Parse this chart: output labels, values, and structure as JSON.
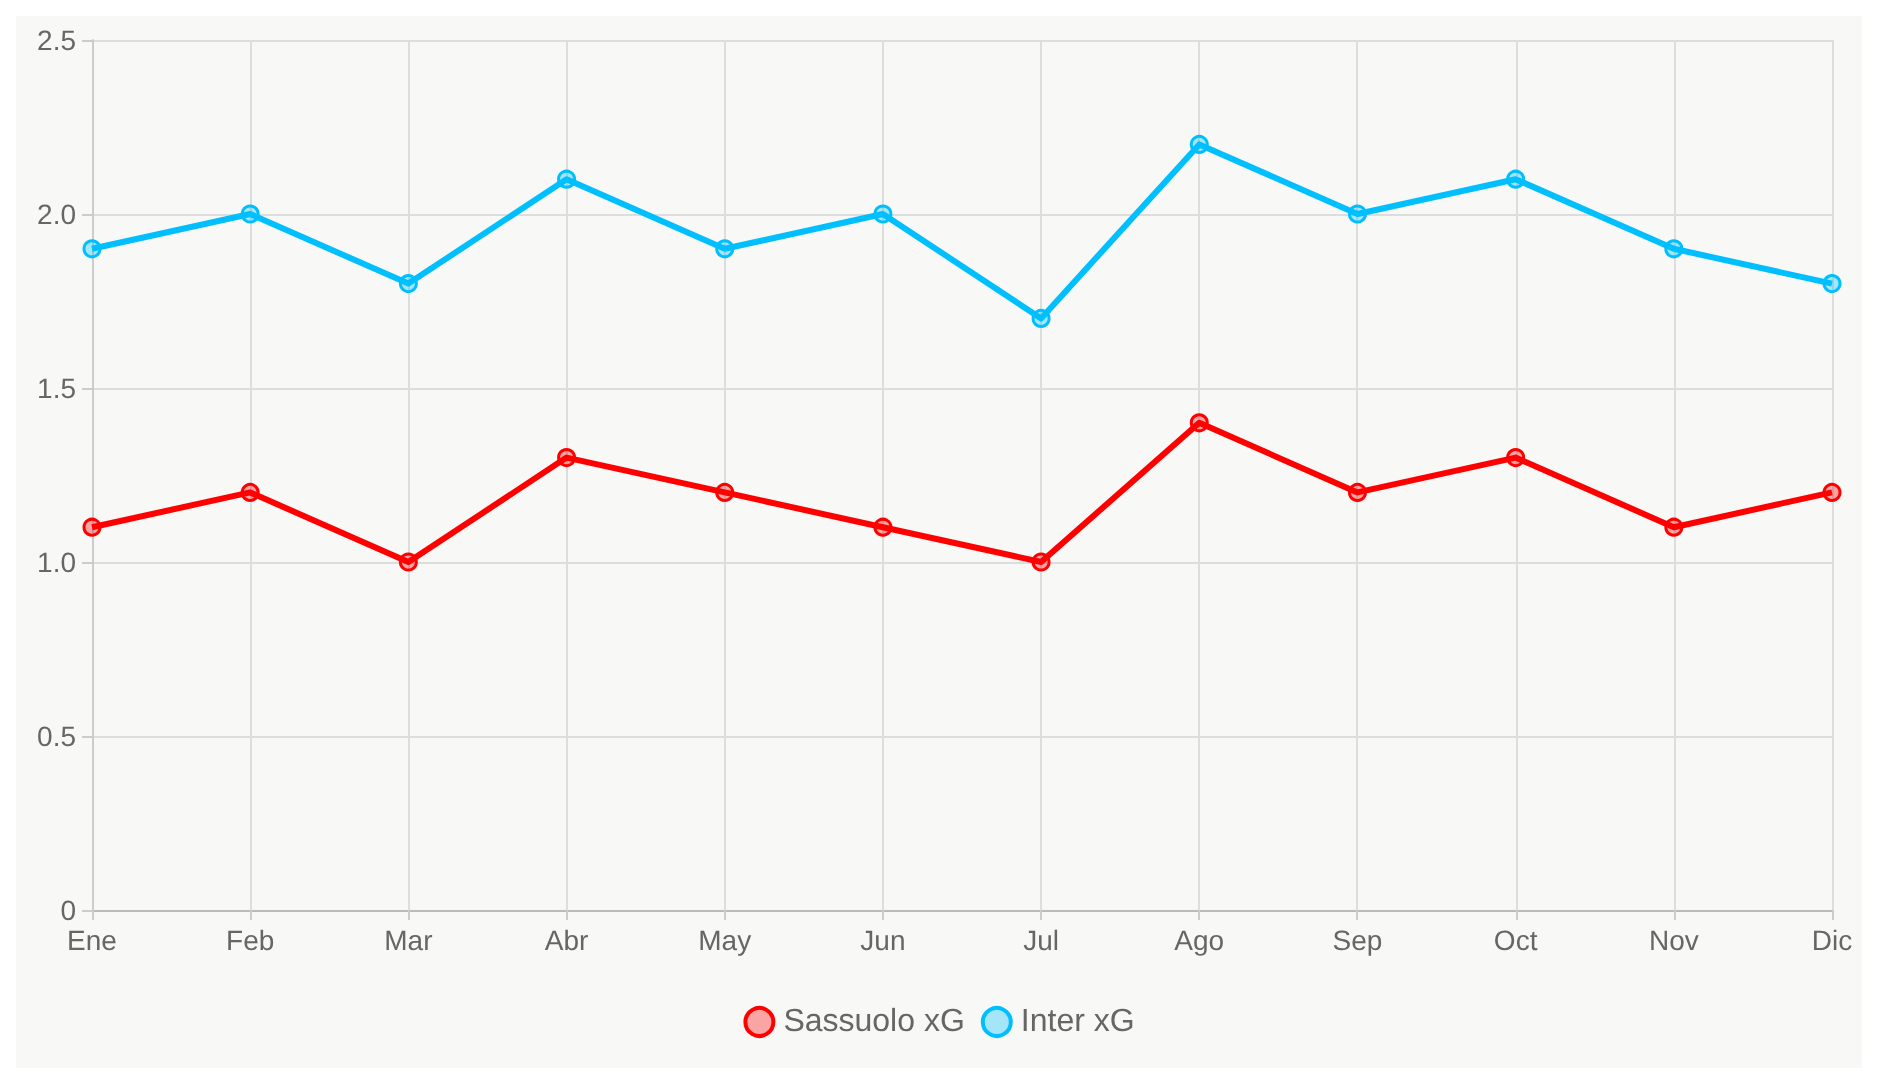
{
  "chart_data": {
    "type": "line",
    "categories": [
      "Ene",
      "Feb",
      "Mar",
      "Abr",
      "May",
      "Jun",
      "Jul",
      "Ago",
      "Sep",
      "Oct",
      "Nov",
      "Dic"
    ],
    "series": [
      {
        "name": "Sassuolo xG",
        "color": "#ff0000",
        "values": [
          1.1,
          1.2,
          1.0,
          1.3,
          1.2,
          1.1,
          1.0,
          1.4,
          1.2,
          1.3,
          1.1,
          1.2
        ]
      },
      {
        "name": "Inter xG",
        "color": "#00bfff",
        "values": [
          1.9,
          2.0,
          1.8,
          2.1,
          1.9,
          2.0,
          1.7,
          2.2,
          2.0,
          2.1,
          1.9,
          1.8
        ]
      }
    ],
    "ylim": [
      0,
      2.5
    ],
    "yticks": [
      0,
      {
        "value": 0.5,
        "label": "0.5"
      },
      {
        "value": 1,
        "label": "1.0"
      },
      {
        "value": 1.5,
        "label": "1.5"
      },
      {
        "value": 2,
        "label": "2.0"
      },
      {
        "value": 2.5,
        "label": "2.5"
      }
    ],
    "grid": true,
    "legend": "bottom",
    "marker": "circle",
    "line_style": "solid"
  }
}
